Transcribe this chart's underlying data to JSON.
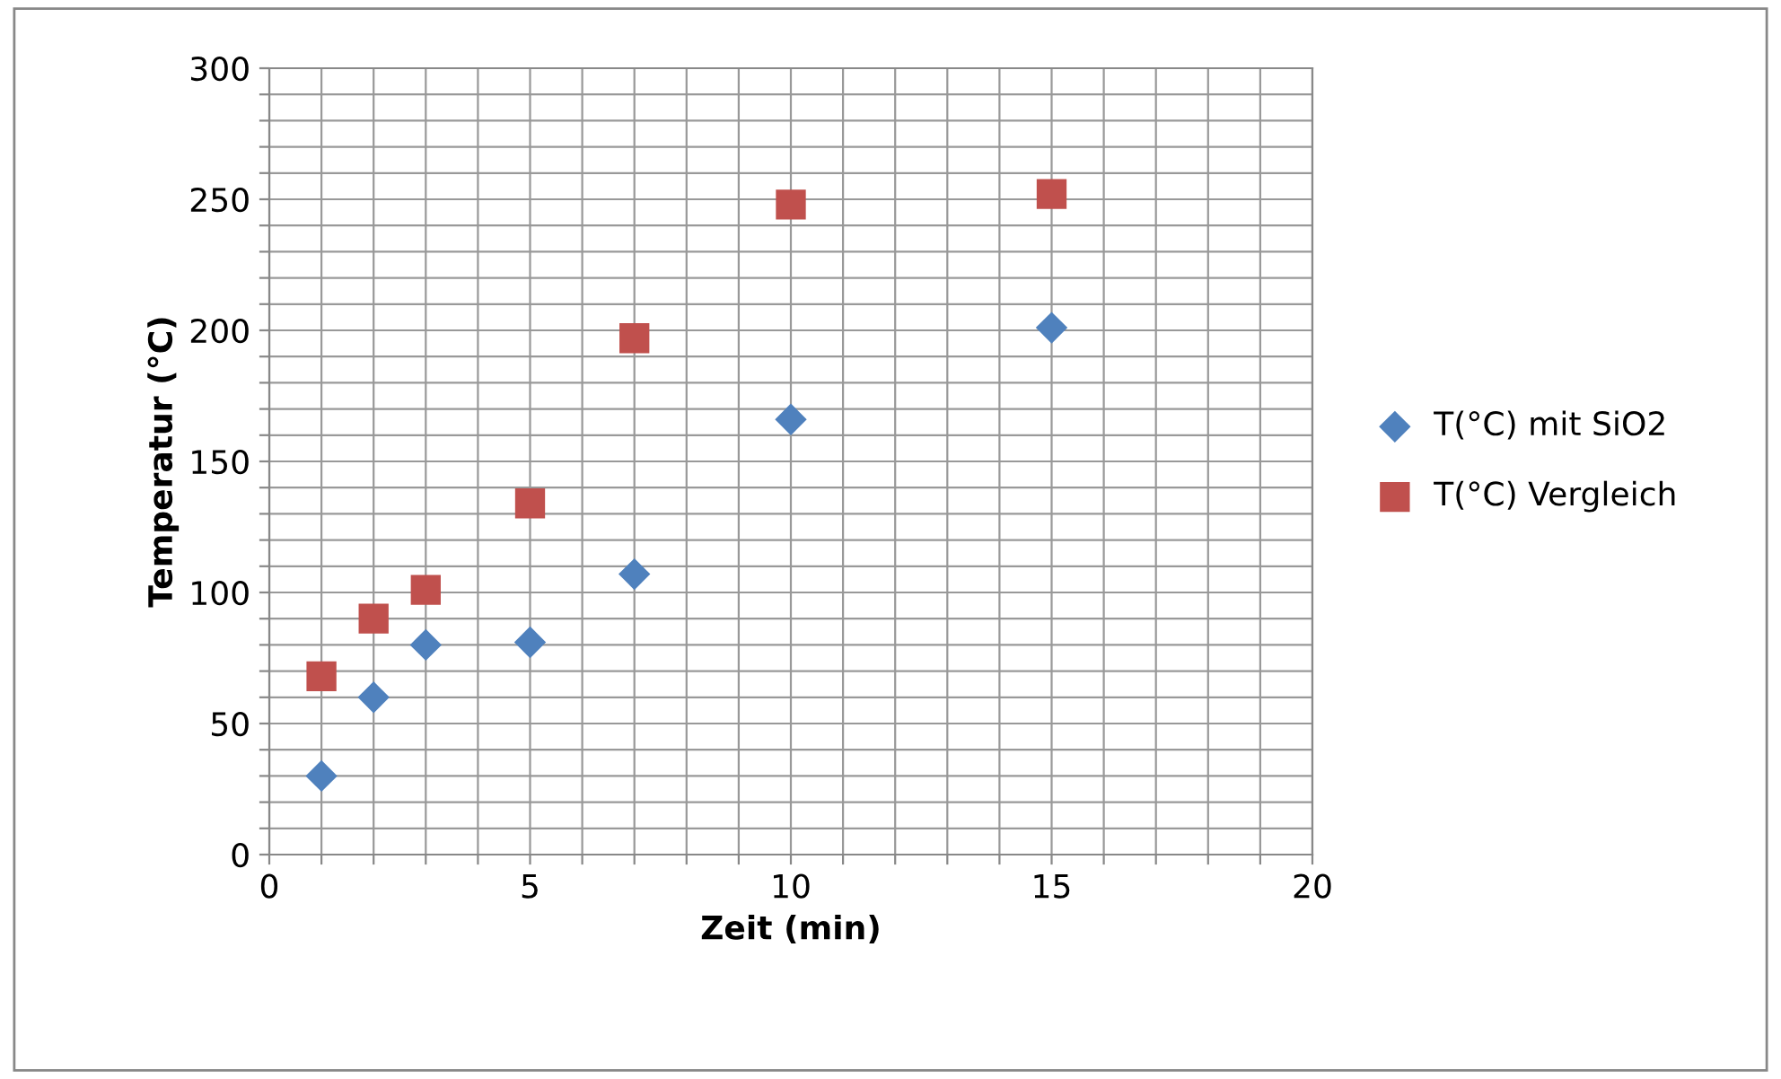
{
  "chart_data": {
    "type": "scatter",
    "xlabel": "Zeit (min)",
    "ylabel": "Temperatur (°C)",
    "x": [
      1,
      2,
      3,
      5,
      7,
      10,
      15
    ],
    "series": [
      {
        "name": "T(°C) mit SiO2",
        "color": "#4f81bd",
        "marker": "diamond",
        "values": [
          30,
          60,
          80,
          81,
          107,
          166,
          201
        ]
      },
      {
        "name": "T(°C) Vergleich",
        "color": "#c0504d",
        "marker": "square",
        "values": [
          68,
          90,
          101,
          134,
          197,
          248,
          252
        ]
      }
    ],
    "xlim": [
      0,
      20
    ],
    "ylim": [
      0,
      300
    ],
    "xticks": [
      0,
      {
        "value": 1,
        "label": null
      },
      {
        "value": 2,
        "label": null
      },
      {
        "value": 3,
        "label": null
      },
      {
        "value": 4,
        "label": null
      },
      5,
      {
        "value": 6,
        "label": null
      },
      {
        "value": 7,
        "label": null
      },
      {
        "value": 8,
        "label": null
      },
      {
        "value": 9,
        "label": null
      },
      10,
      {
        "value": 11,
        "label": null
      },
      {
        "value": 12,
        "label": null
      },
      {
        "value": 13,
        "label": null
      },
      {
        "value": 14,
        "label": null
      },
      15,
      {
        "value": 16,
        "label": null
      },
      {
        "value": 17,
        "label": null
      },
      {
        "value": 18,
        "label": null
      },
      {
        "value": 19,
        "label": null
      },
      20
    ],
    "yticks": [
      0,
      {
        "value": 10,
        "label": null
      },
      {
        "value": 20,
        "label": null
      },
      {
        "value": 30,
        "label": null
      },
      {
        "value": 40,
        "label": null
      },
      50,
      {
        "value": 60,
        "label": null
      },
      {
        "value": 70,
        "label": null
      },
      {
        "value": 80,
        "label": null
      },
      {
        "value": 90,
        "label": null
      },
      100,
      {
        "value": 110,
        "label": null
      },
      {
        "value": 120,
        "label": null
      },
      {
        "value": 130,
        "label": null
      },
      {
        "value": 140,
        "label": null
      },
      150,
      {
        "value": 160,
        "label": null
      },
      {
        "value": 170,
        "label": null
      },
      {
        "value": 180,
        "label": null
      },
      {
        "value": 190,
        "label": null
      },
      200,
      {
        "value": 210,
        "label": null
      },
      {
        "value": 220,
        "label": null
      },
      {
        "value": 230,
        "label": null
      },
      {
        "value": 240,
        "label": null
      },
      250,
      {
        "value": 260,
        "label": null
      },
      {
        "value": 270,
        "label": null
      },
      {
        "value": 280,
        "label": null
      },
      {
        "value": 290,
        "label": null
      },
      300
    ],
    "grid": true,
    "legend": "right"
  }
}
